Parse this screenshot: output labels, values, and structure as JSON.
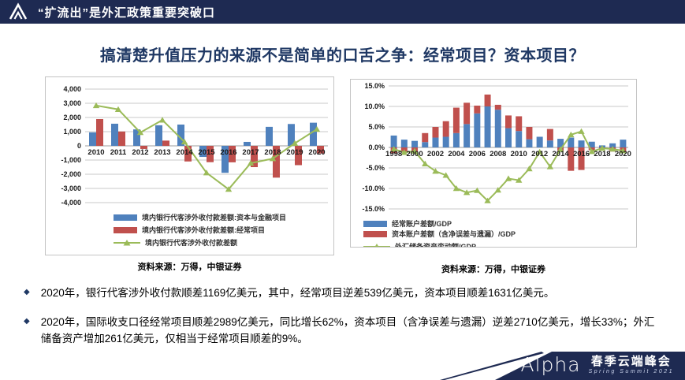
{
  "header": {
    "title": "“扩流出”是外汇政策重要突破口"
  },
  "main_title": "搞清楚升值压力的来源不是简单的口舌之争：经常项目？资本项目？",
  "colors": {
    "navy": "#1E2A52",
    "title_navy": "#1F3864",
    "bar_blue": "#4F81BD",
    "bar_red": "#C0504D",
    "line_green": "#9BBB59"
  },
  "chart_data": [
    {
      "type": "bar+line",
      "stacked": false,
      "categories": [
        2010,
        2011,
        2012,
        2013,
        2014,
        2015,
        2016,
        2017,
        2018,
        2019,
        2020
      ],
      "series": [
        {
          "name": "境内银行代客涉外收付款差额:资本与金融项目",
          "type": "bar",
          "color": "#4F81BD",
          "values": [
            950,
            1560,
            1160,
            1450,
            1500,
            -780,
            -1900,
            280,
            1340,
            1540,
            1631
          ]
        },
        {
          "name": "境内银行代客涉外收付款差额:经常项目",
          "type": "bar",
          "color": "#C0504D",
          "values": [
            1890,
            1010,
            -220,
            370,
            -1100,
            -1150,
            -1160,
            -1500,
            -2240,
            -1360,
            -539
          ]
        },
        {
          "name": "境内银行代客涉外收付款差额",
          "type": "line",
          "color": "#9BBB59",
          "values": [
            2840,
            2570,
            940,
            1820,
            280,
            -1900,
            -3060,
            -1220,
            -900,
            180,
            1169
          ]
        }
      ],
      "ylim": [
        -4000,
        4000
      ],
      "ytick": 1000,
      "yformat": "comma",
      "grid": true,
      "legend_position": "bottom",
      "source": "资料来源：万得，中银证券"
    },
    {
      "type": "stacked-bar+line",
      "stacked": true,
      "categories": [
        1998,
        1999,
        2000,
        2001,
        2002,
        2003,
        2004,
        2005,
        2006,
        2007,
        2008,
        2009,
        2010,
        2011,
        2012,
        2013,
        2014,
        2015,
        2016,
        2017,
        2018,
        2019,
        2020
      ],
      "xtick_every": 2,
      "series": [
        {
          "name": "经常账户差额/GDP",
          "type": "bar",
          "color": "#4F81BD",
          "values": [
            2.9,
            1.9,
            1.6,
            1.3,
            2.4,
            2.6,
            3.5,
            5.7,
            8.3,
            10.0,
            9.2,
            4.7,
            4.0,
            2.0,
            2.6,
            1.7,
            2.1,
            2.4,
            1.7,
            1.4,
            0.5,
            1.0,
            1.9
          ]
        },
        {
          "name": "资本账户差额（含净误差与遗漏）/GDP",
          "type": "bar",
          "color": "#C0504D",
          "values": [
            -1.4,
            -1.0,
            -1.0,
            2.2,
            2.6,
            3.8,
            6.2,
            5.2,
            1.9,
            2.9,
            1.2,
            3.1,
            3.6,
            3.0,
            0,
            2.8,
            -0.8,
            -5.7,
            -5.5,
            -0.7,
            -0.4,
            -1.0,
            -1.0
          ]
        },
        {
          "name": "外汇储备资产变动额/GDP",
          "type": "line",
          "color": "#9BBB59",
          "values": [
            -0.4,
            -1.2,
            -0.9,
            -4.0,
            -5.8,
            -6.8,
            -10.0,
            -11.0,
            -10.5,
            -13.0,
            -10.4,
            -7.6,
            -8.0,
            -5.2,
            -1.1,
            -4.7,
            -0.5,
            3.1,
            3.9,
            -1.0,
            -0.2,
            -0.4,
            -0.8
          ]
        }
      ],
      "ylim": [
        -15,
        15
      ],
      "ytick": 5,
      "yformat": "percent1",
      "grid": true,
      "legend_position": "bottom",
      "source": "资料来源：万得，中银证券"
    }
  ],
  "bullets": [
    "2020年，银行代客涉外收付款顺差1169亿美元，其中，经常项目逆差539亿美元，资本项目顺差1631亿美元。",
    "2020年，国际收支口径经常项目顺差2989亿美元，同比增长62%，资本项目（含净误差与遗漏）逆差2710亿美元，增长33%；外汇储备资产增加261亿美元，仅相当于经常项目顺差的9%。"
  ],
  "footer": {
    "brand": "Alpha",
    "event": "春季云端峰会",
    "subtitle": "Spring Summit 2021"
  }
}
